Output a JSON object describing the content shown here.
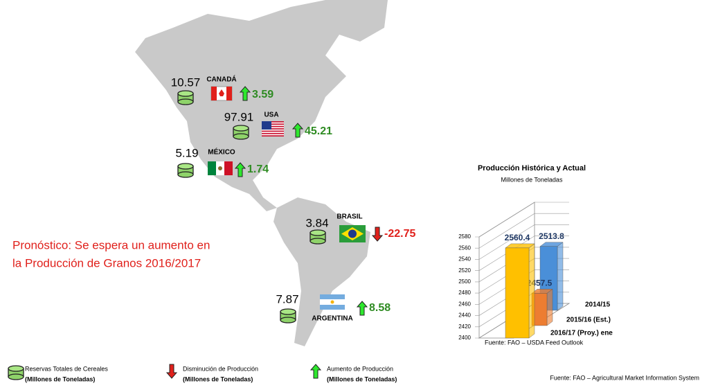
{
  "map": {
    "countries": [
      {
        "name": "CANADÁ",
        "reserves": 10.57,
        "change": 3.59
      },
      {
        "name": "USA",
        "reserves": 97.91,
        "change": 45.21
      },
      {
        "name": "MÉXICO",
        "reserves": 5.19,
        "change": 1.74
      },
      {
        "name": "BRASIL",
        "reserves": 3.84,
        "change": -22.75
      },
      {
        "name": "ARGENTINA",
        "reserves": 7.87,
        "change": 8.58
      }
    ],
    "note": [
      "Pronóstico: Se espera un aumento en",
      "la Producción de Granos 2016/2017"
    ]
  },
  "legend": [
    {
      "label": "Reservas Totales de Cereales",
      "unit": "(Millones de Toneladas)"
    },
    {
      "label": "Disminución de Producción",
      "unit": "(Millones de Toneladas)"
    },
    {
      "label": "Aumento de Producción",
      "unit": "(Millones de Toneladas)"
    }
  ],
  "source": "Fuente:  FAO – Agricultural  Market  Information  System",
  "chart_data": {
    "type": "bar3d",
    "title": "Producción  Histórica y Actual",
    "subtitle": "Millones de Toneladas",
    "categories": [
      "2014/15",
      "2015/16 (Est.)",
      "2016/17 (Proy.) ene"
    ],
    "values": [
      2513.8,
      2457.5,
      2560.4
    ],
    "colors": [
      "#4a8fd8",
      "#ed7d31",
      "#ffc000"
    ],
    "ylim": [
      2400,
      2580
    ],
    "yticks": [
      2400,
      2420,
      2440,
      2460,
      2480,
      2500,
      2520,
      2540,
      2560,
      2580
    ],
    "grid": true,
    "source": "Fuente:  FAO – USDA Feed Outlook"
  }
}
